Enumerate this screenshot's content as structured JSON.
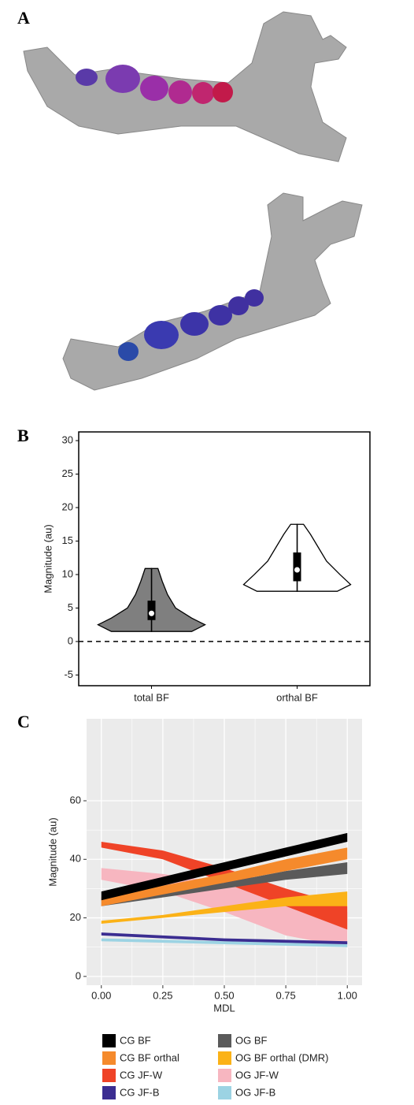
{
  "panel_a": {
    "label": "A"
  },
  "chart_data": [
    {
      "type": "violin",
      "panel": "B",
      "ylabel": "Magnitude (au)",
      "categories": [
        "total BF",
        "orthal BF"
      ],
      "ylim": [
        -6.6,
        31.3
      ],
      "yticks": [
        -5,
        0,
        5,
        10,
        15,
        20,
        25,
        30
      ],
      "hline": 0,
      "violins": [
        {
          "color": "#7f7f7f",
          "min": 1.5,
          "q1": 3.2,
          "median": 4.2,
          "q3": 6.1,
          "max": 10.9,
          "profile": {
            "y": [
              1.5,
              2.5,
              3.5,
              5,
              7,
              9,
              10.9
            ],
            "width": [
              0.75,
              1.0,
              0.75,
              0.45,
              0.3,
              0.2,
              0.12
            ]
          }
        },
        {
          "color": "#ffffff",
          "min": 7.5,
          "q1": 9,
          "median": 10.7,
          "q3": 13.3,
          "max": 17.5,
          "profile": {
            "y": [
              7.5,
              8.5,
              10,
              12,
              14,
              16,
              17.5
            ],
            "width": [
              0.75,
              1.0,
              0.8,
              0.55,
              0.4,
              0.25,
              0.12
            ]
          }
        }
      ]
    },
    {
      "type": "ribbon",
      "panel": "C",
      "xlabel": "MDL",
      "ylabel": "Magnitude (au)",
      "xlim": [
        -0.06,
        1.06
      ],
      "ylim": [
        -3,
        88
      ],
      "xticks": [
        {
          "value": 0,
          "label": "0.00"
        },
        {
          "value": 0.25,
          "label": "0.25"
        },
        {
          "value": 0.5,
          "label": "0.50"
        },
        {
          "value": 0.75,
          "label": "0.75"
        },
        {
          "value": 1,
          "label": "1.00"
        }
      ],
      "yticks": [
        0,
        20,
        40,
        60
      ],
      "grid": true,
      "x": [
        0,
        0.25,
        0.5,
        0.75,
        1
      ],
      "series": [
        {
          "name": "CG BF",
          "color": "#000000",
          "lower": [
            26,
            31,
            36,
            41,
            46
          ],
          "upper": [
            29,
            34,
            39,
            44,
            49
          ]
        },
        {
          "name": "OG BF",
          "color": "#5a5a5a",
          "lower": [
            24,
            27,
            30,
            33,
            35
          ],
          "upper": [
            26,
            29,
            32,
            36,
            39
          ]
        },
        {
          "name": "CG BF orthal",
          "color": "#f58a2c",
          "lower": [
            24,
            28,
            32,
            36,
            40
          ],
          "upper": [
            27,
            31,
            35,
            40,
            44
          ]
        },
        {
          "name": "OG BF orthal (DMR)",
          "color": "#fbb217",
          "lower": [
            18,
            20,
            22,
            24,
            24
          ],
          "upper": [
            19,
            21,
            24,
            27,
            29
          ]
        },
        {
          "name": "CG JF-W",
          "color": "#ef4327",
          "lower": [
            44,
            40,
            32,
            24,
            16
          ],
          "upper": [
            46,
            43,
            37,
            30,
            24
          ]
        },
        {
          "name": "OG JF-W",
          "color": "#f7b6c0",
          "lower": [
            33,
            29,
            22,
            14,
            10
          ],
          "upper": [
            37,
            35,
            32,
            30,
            22
          ]
        },
        {
          "name": "CG JF-B",
          "color": "#3b2d91",
          "lower": [
            14,
            13,
            12,
            11.5,
            11
          ],
          "upper": [
            15,
            14,
            13,
            12.5,
            12
          ]
        },
        {
          "name": "OG JF-B",
          "color": "#9cd3e3",
          "lower": [
            12,
            11.5,
            11,
            10.5,
            10
          ],
          "upper": [
            13,
            12.5,
            12,
            11.5,
            11
          ]
        }
      ]
    }
  ]
}
